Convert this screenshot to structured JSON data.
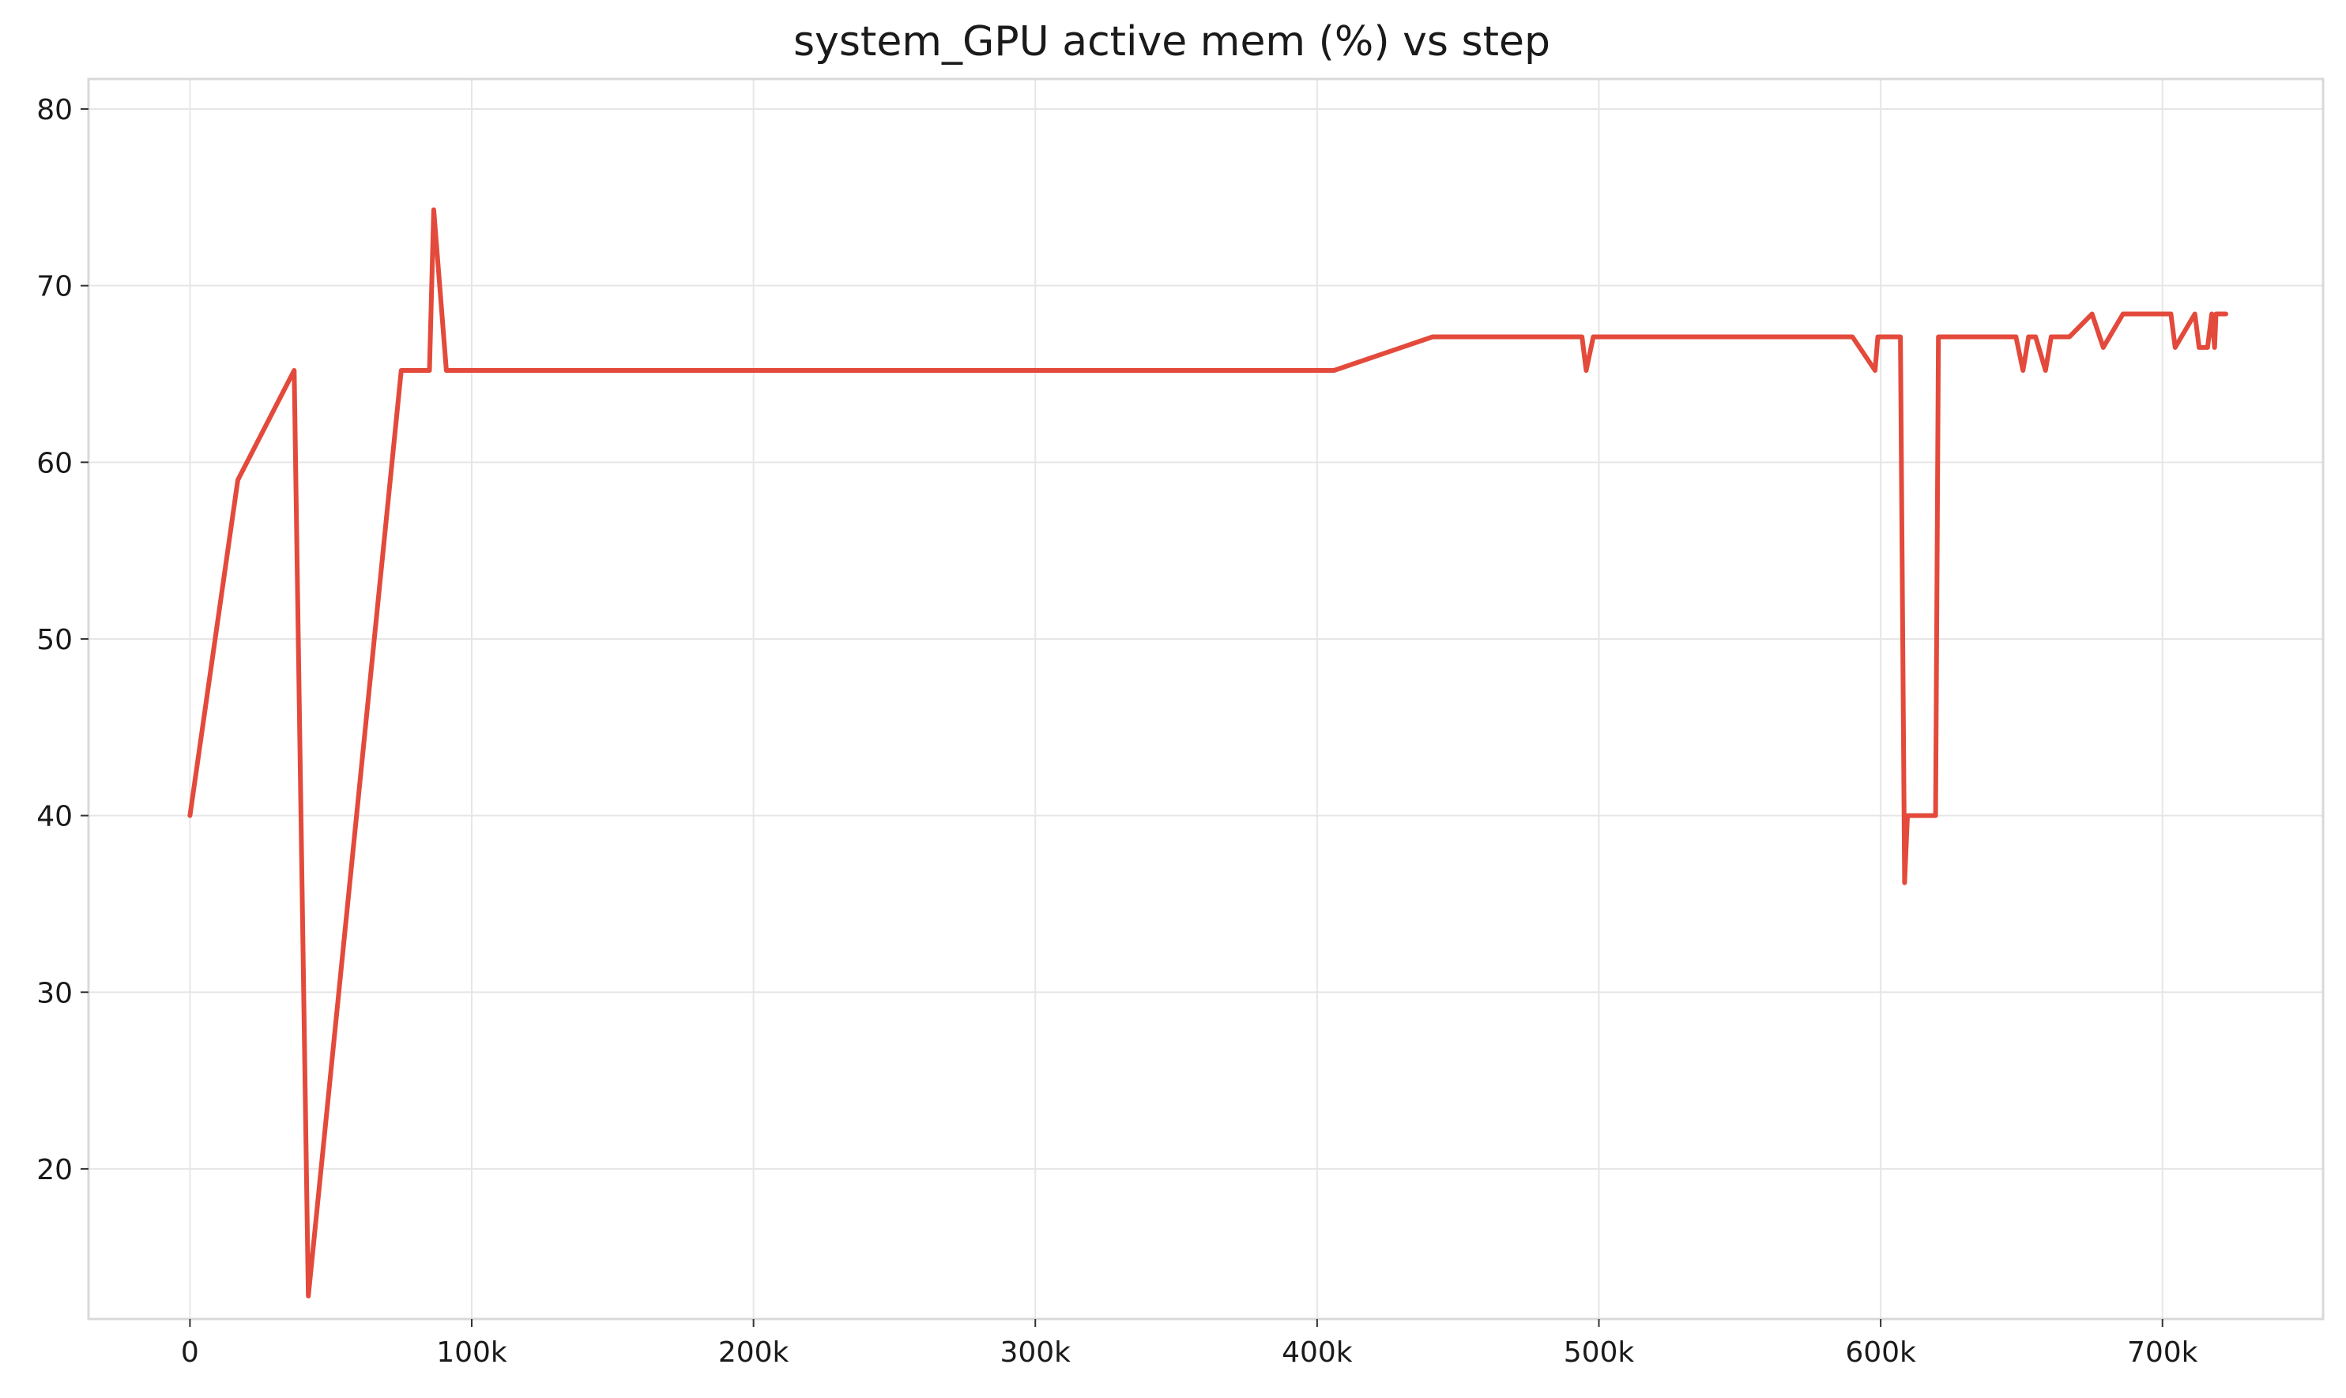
{
  "chart_data": {
    "type": "line",
    "title": "system_GPU active mem (%) vs step",
    "xlabel": "",
    "ylabel": "",
    "xlim": [
      -36000,
      757000
    ],
    "ylim": [
      11.5,
      81.7
    ],
    "grid": true,
    "legend": "none",
    "x_ticks": [
      {
        "value": 0,
        "label": "0"
      },
      {
        "value": 100000,
        "label": "100k"
      },
      {
        "value": 200000,
        "label": "200k"
      },
      {
        "value": 300000,
        "label": "300k"
      },
      {
        "value": 400000,
        "label": "400k"
      },
      {
        "value": 500000,
        "label": "500k"
      },
      {
        "value": 600000,
        "label": "600k"
      },
      {
        "value": 700000,
        "label": "700k"
      }
    ],
    "y_ticks": [
      {
        "value": 20,
        "label": "20"
      },
      {
        "value": 30,
        "label": "30"
      },
      {
        "value": 40,
        "label": "40"
      },
      {
        "value": 50,
        "label": "50"
      },
      {
        "value": 60,
        "label": "60"
      },
      {
        "value": 70,
        "label": "70"
      },
      {
        "value": 80,
        "label": "80"
      }
    ],
    "series": [
      {
        "color": "#e34a3b",
        "x": [
          0,
          17000,
          37000,
          42000,
          75000,
          85000,
          86500,
          91000,
          406000,
          441000,
          494000,
          495500,
          498000,
          590000,
          598000,
          599000,
          607000,
          608500,
          609500,
          610500,
          619500,
          620500,
          648000,
          650500,
          652500,
          655000,
          658500,
          660500,
          667000,
          675000,
          679000,
          686000,
          703000,
          704500,
          711500,
          713000,
          716000,
          717500,
          718500,
          719000,
          722500
        ],
        "y": [
          40,
          59,
          65.2,
          12.8,
          65.2,
          65.2,
          74.3,
          65.2,
          65.2,
          67.1,
          67.1,
          65.2,
          67.1,
          67.1,
          65.2,
          67.1,
          67.1,
          36.2,
          40,
          40,
          40,
          67.1,
          67.1,
          65.2,
          67.1,
          67.1,
          65.2,
          67.1,
          67.1,
          68.4,
          66.5,
          68.4,
          68.4,
          66.5,
          68.4,
          66.5,
          66.5,
          68.4,
          66.5,
          68.4,
          68.4
        ]
      }
    ]
  }
}
